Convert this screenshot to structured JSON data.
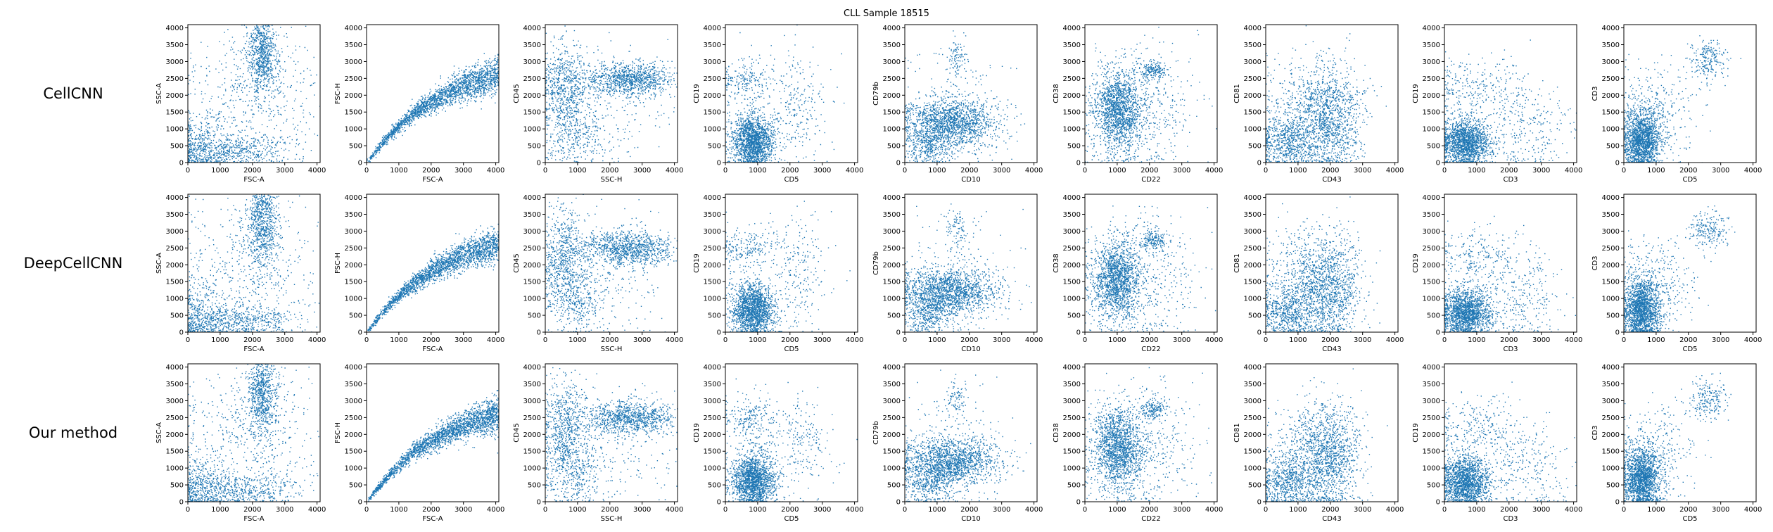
{
  "figure": {
    "title": "CLL Sample 18515",
    "methods": [
      "CellCNN",
      "DeepCellCNN",
      "Our method"
    ],
    "colors": {
      "points": "#1f77b4",
      "axes": "#000000",
      "background": "#ffffff"
    }
  },
  "chart_data": {
    "type": "scatter",
    "title": "CLL Sample 18515",
    "rows": [
      "CellCNN",
      "DeepCellCNN",
      "Our method"
    ],
    "xlim": [
      0,
      4096
    ],
    "ylim": [
      0,
      4096
    ],
    "x_ticks": [
      0,
      1000,
      2000,
      3000,
      4000
    ],
    "y_ticks": [
      0,
      500,
      1000,
      1500,
      2000,
      2500,
      3000,
      3500,
      4000
    ],
    "panels": [
      {
        "xlabel": "FSC-A",
        "ylabel": "SSC-A",
        "clusters": [
          {
            "cx": 2300,
            "cy": 3300,
            "sx": 220,
            "sy": 650,
            "w": 0.35
          },
          {
            "cx": 1500,
            "cy": 350,
            "sx": 900,
            "sy": 250,
            "w": 0.25
          },
          {
            "cx": 400,
            "cy": 500,
            "sx": 350,
            "sy": 500,
            "w": 0.15
          },
          {
            "cx": 2000,
            "cy": 2000,
            "sx": 1100,
            "sy": 1100,
            "w": 0.25
          }
        ]
      },
      {
        "xlabel": "FSC-A",
        "ylabel": "FSC-H",
        "curve": true,
        "clusters": []
      },
      {
        "xlabel": "SSC-H",
        "ylabel": "CD45",
        "clusters": [
          {
            "cx": 2600,
            "cy": 2500,
            "sx": 700,
            "sy": 250,
            "w": 0.45
          },
          {
            "cx": 600,
            "cy": 2200,
            "sx": 350,
            "sy": 700,
            "w": 0.3
          },
          {
            "cx": 900,
            "cy": 900,
            "sx": 500,
            "sy": 500,
            "w": 0.15
          },
          {
            "cx": 2000,
            "cy": 1800,
            "sx": 1100,
            "sy": 900,
            "w": 0.1
          }
        ]
      },
      {
        "xlabel": "CD5",
        "ylabel": "CD19",
        "clusters": [
          {
            "cx": 850,
            "cy": 650,
            "sx": 320,
            "sy": 380,
            "w": 0.75
          },
          {
            "cx": 700,
            "cy": 2500,
            "sx": 450,
            "sy": 300,
            "w": 0.08
          },
          {
            "cx": 2300,
            "cy": 1800,
            "sx": 400,
            "sy": 800,
            "w": 0.07
          },
          {
            "cx": 1200,
            "cy": 1500,
            "sx": 900,
            "sy": 900,
            "w": 0.1
          }
        ]
      },
      {
        "xlabel": "CD10",
        "ylabel": "CD79b",
        "clusters": [
          {
            "cx": 1400,
            "cy": 1200,
            "sx": 700,
            "sy": 350,
            "w": 0.7
          },
          {
            "cx": 1600,
            "cy": 3100,
            "sx": 150,
            "sy": 300,
            "w": 0.04
          },
          {
            "cx": 700,
            "cy": 500,
            "sx": 350,
            "sy": 300,
            "w": 0.16
          },
          {
            "cx": 1500,
            "cy": 1600,
            "sx": 900,
            "sy": 900,
            "w": 0.1
          }
        ]
      },
      {
        "xlabel": "CD22",
        "ylabel": "CD38",
        "clusters": [
          {
            "cx": 1000,
            "cy": 1600,
            "sx": 380,
            "sy": 600,
            "w": 0.7
          },
          {
            "cx": 2100,
            "cy": 2750,
            "sx": 200,
            "sy": 150,
            "w": 0.08
          },
          {
            "cx": 2000,
            "cy": 2000,
            "sx": 800,
            "sy": 900,
            "w": 0.12
          },
          {
            "cx": 1500,
            "cy": 800,
            "sx": 900,
            "sy": 800,
            "w": 0.1
          }
        ]
      },
      {
        "xlabel": "CD43",
        "ylabel": "CD81",
        "clusters": [
          {
            "cx": 2000,
            "cy": 1200,
            "sx": 450,
            "sy": 800,
            "w": 0.4
          },
          {
            "cx": 700,
            "cy": 600,
            "sx": 450,
            "sy": 400,
            "w": 0.3
          },
          {
            "cx": 1500,
            "cy": 1700,
            "sx": 700,
            "sy": 700,
            "w": 0.3
          }
        ]
      },
      {
        "xlabel": "CD3",
        "ylabel": "CD19",
        "clusters": [
          {
            "cx": 650,
            "cy": 600,
            "sx": 380,
            "sy": 350,
            "w": 0.75
          },
          {
            "cx": 1000,
            "cy": 2200,
            "sx": 700,
            "sy": 450,
            "w": 0.12
          },
          {
            "cx": 2500,
            "cy": 1000,
            "sx": 700,
            "sy": 700,
            "w": 0.13
          }
        ]
      },
      {
        "xlabel": "CD5",
        "ylabel": "CD3",
        "clusters": [
          {
            "cx": 550,
            "cy": 700,
            "sx": 280,
            "sy": 450,
            "w": 0.75
          },
          {
            "cx": 2600,
            "cy": 3050,
            "sx": 300,
            "sy": 300,
            "w": 0.1
          },
          {
            "cx": 1000,
            "cy": 1500,
            "sx": 600,
            "sy": 700,
            "w": 0.15
          }
        ]
      }
    ]
  }
}
